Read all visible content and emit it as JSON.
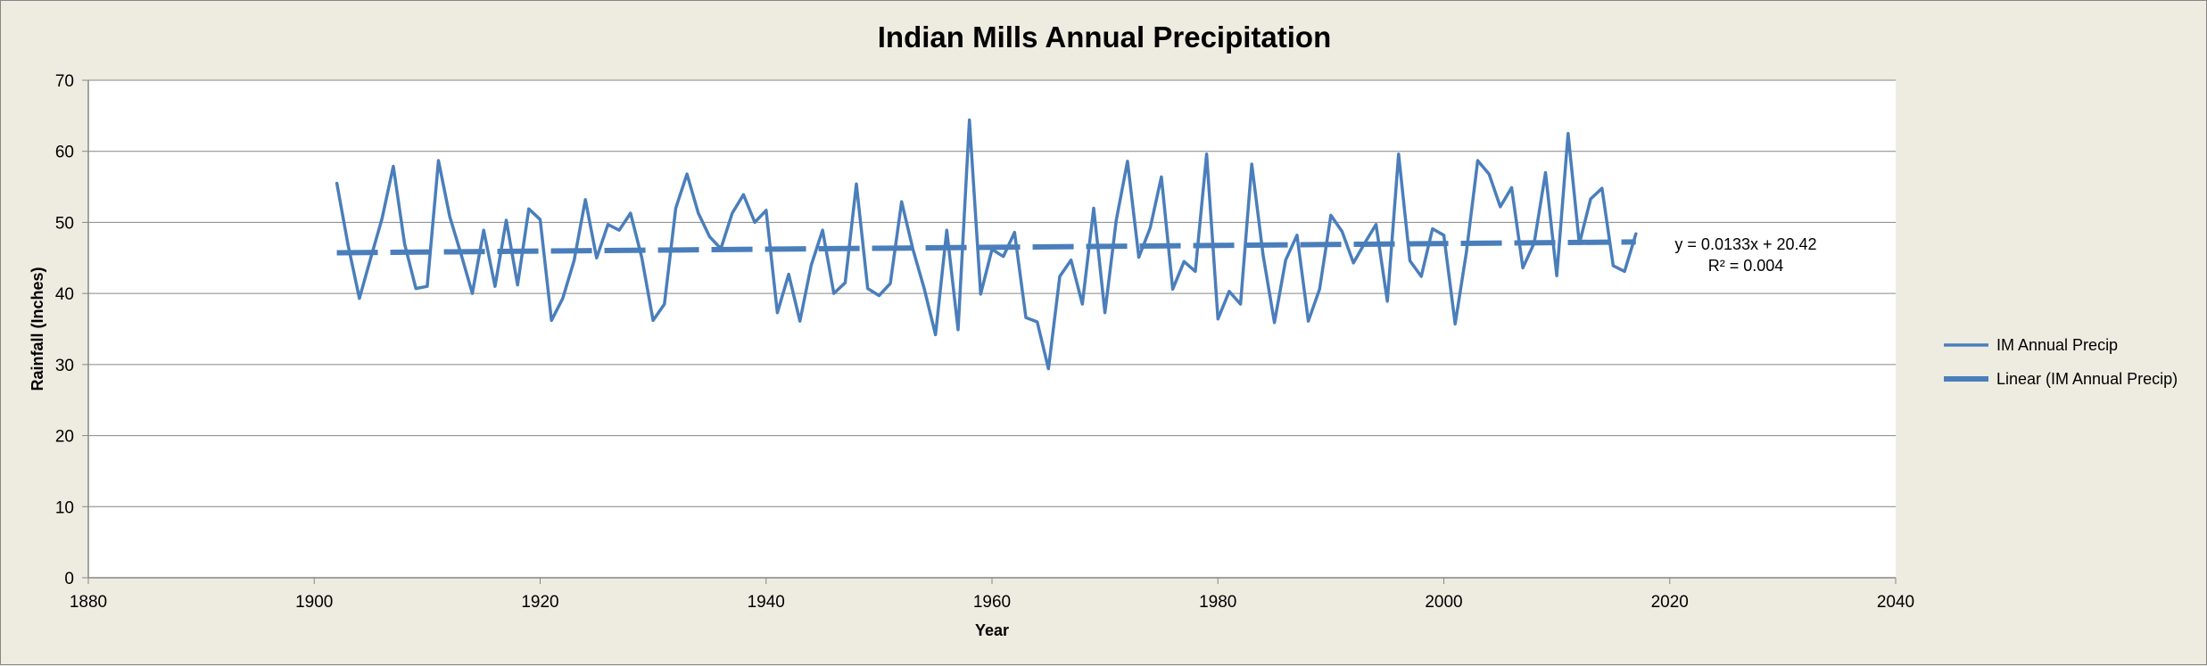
{
  "chart_data": {
    "type": "line",
    "title": "Indian Mills Annual Precipitation",
    "xlabel": "Year",
    "ylabel": "Rainfall (Inches)",
    "xlim": [
      1880,
      2040
    ],
    "ylim": [
      0,
      70
    ],
    "xticks": [
      1880,
      1900,
      1920,
      1940,
      1960,
      1980,
      2000,
      2020,
      2040
    ],
    "yticks": [
      0,
      10,
      20,
      30,
      40,
      50,
      60,
      70
    ],
    "grid": "horizontal",
    "legend_position": "right",
    "series": [
      {
        "name": "IM Annual Precip",
        "color": "#4a7ebb",
        "style": "solid",
        "x": [
          1902,
          1903,
          1904,
          1905,
          1906,
          1907,
          1908,
          1909,
          1910,
          1911,
          1912,
          1913,
          1914,
          1915,
          1916,
          1917,
          1918,
          1919,
          1920,
          1921,
          1922,
          1923,
          1924,
          1925,
          1926,
          1927,
          1928,
          1929,
          1930,
          1931,
          1932,
          1933,
          1934,
          1935,
          1936,
          1937,
          1938,
          1939,
          1940,
          1941,
          1942,
          1943,
          1944,
          1945,
          1946,
          1947,
          1948,
          1949,
          1950,
          1951,
          1952,
          1953,
          1954,
          1955,
          1956,
          1957,
          1958,
          1959,
          1960,
          1961,
          1962,
          1963,
          1964,
          1965,
          1966,
          1967,
          1968,
          1969,
          1970,
          1971,
          1972,
          1973,
          1974,
          1975,
          1976,
          1977,
          1978,
          1979,
          1980,
          1981,
          1982,
          1983,
          1984,
          1985,
          1986,
          1987,
          1988,
          1989,
          1990,
          1991,
          1992,
          1993,
          1994,
          1995,
          1996,
          1997,
          1998,
          1999,
          2000,
          2001,
          2002,
          2003,
          2004,
          2005,
          2006,
          2007,
          2008,
          2009,
          2010,
          2011,
          2012,
          2013,
          2014,
          2015,
          2016,
          2017
        ],
        "y": [
          55.5,
          46.8,
          39.3,
          45.0,
          50.5,
          57.9,
          47.0,
          40.7,
          41.0,
          58.7,
          50.8,
          45.5,
          40.0,
          48.9,
          41.0,
          50.3,
          41.2,
          51.9,
          50.4,
          36.2,
          39.3,
          44.6,
          53.2,
          45.0,
          49.7,
          48.9,
          51.3,
          45.0,
          36.2,
          38.5,
          52.0,
          56.8,
          51.3,
          48.0,
          46.3,
          51.3,
          53.9,
          50.0,
          51.7,
          37.3,
          42.7,
          36.1,
          44.0,
          48.9,
          40.0,
          41.5,
          55.4,
          40.7,
          39.7,
          41.4,
          52.9,
          46.2,
          40.7,
          34.2,
          48.9,
          34.9,
          64.4,
          39.9,
          46.2,
          45.2,
          48.6,
          36.6,
          36.0,
          29.4,
          42.4,
          44.7,
          38.5,
          52.0,
          37.3,
          50.3,
          58.6,
          45.1,
          49.2,
          56.4,
          40.6,
          44.5,
          43.1,
          59.6,
          36.4,
          40.3,
          38.5,
          58.2,
          45.4,
          35.9,
          44.7,
          48.2,
          36.1,
          40.6,
          51.0,
          48.7,
          44.3,
          47.1,
          49.7,
          38.9,
          59.6,
          44.6,
          42.4,
          49.1,
          48.2,
          35.7,
          45.8,
          58.7,
          56.8,
          52.2,
          54.9,
          43.6,
          47.1,
          57.0,
          42.5,
          62.5,
          47.0,
          53.3,
          54.8,
          43.9,
          43.1,
          48.4
        ]
      },
      {
        "name": "Linear (IM Annual Precip)",
        "color": "#4a7ebb",
        "style": "dashed",
        "x": [
          1902,
          2017
        ],
        "y": [
          45.72,
          47.25
        ]
      }
    ],
    "annotations": [
      "y = 0.0133x + 20.42",
      "R² = 0.004"
    ]
  }
}
